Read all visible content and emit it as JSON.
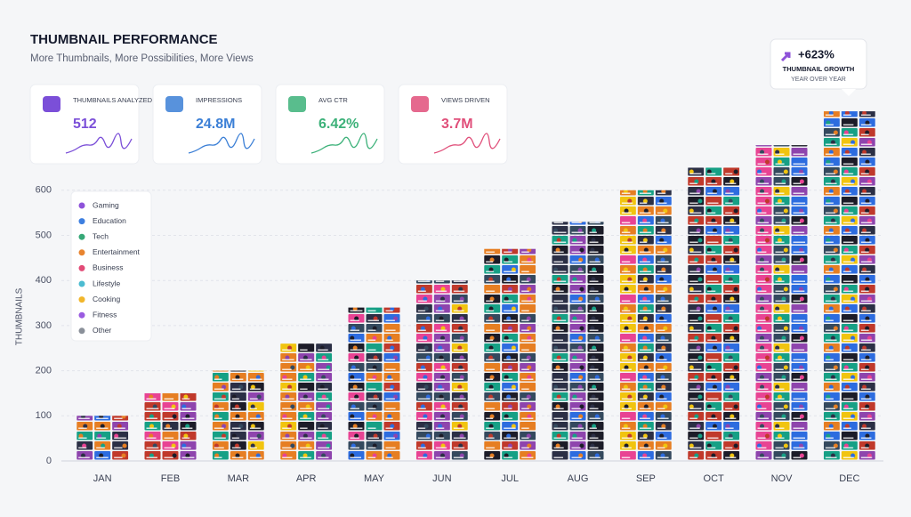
{
  "header": {
    "title": "THUMBNAIL PERFORMANCE",
    "subtitle": "More Thumbnails, More Possibilities, More Views"
  },
  "cards": [
    {
      "label": "THUMBNAILS ANALYZED",
      "value": "512",
      "color": "#7b4fd8"
    },
    {
      "label": "IMPRESSIONS",
      "value": "24.8M",
      "color": "#3b7fd6"
    },
    {
      "label": "AVG CTR",
      "value": "6.42%",
      "color": "#3cb179"
    },
    {
      "label": "VIEWS DRIVEN",
      "value": "3.7M",
      "color": "#e04f7a"
    }
  ],
  "callout": {
    "value": "+623%",
    "line1": "THUMBNAIL GROWTH",
    "line2": "YEAR OVER YEAR"
  },
  "chart_data": {
    "type": "bar",
    "y_label": "THUMBNAILS",
    "categories": [
      "JAN",
      "FEB",
      "MAR",
      "APR",
      "MAY",
      "JUN",
      "JUL",
      "AUG",
      "SEP",
      "OCT",
      "NOV",
      "DEC"
    ],
    "values": [
      100,
      150,
      200,
      260,
      340,
      400,
      470,
      530,
      600,
      650,
      700,
      775
    ],
    "ylim": [
      0,
      800
    ],
    "yticks": [
      0,
      100,
      200,
      300,
      400,
      500,
      600
    ],
    "grid": true,
    "legend": [
      {
        "name": "Gaming",
        "color": "#8e52d9"
      },
      {
        "name": "Education",
        "color": "#3d7fe0"
      },
      {
        "name": "Tech",
        "color": "#36a877"
      },
      {
        "name": "Entertainment",
        "color": "#e8842f"
      },
      {
        "name": "Business",
        "color": "#e24b77"
      },
      {
        "name": "Lifestyle",
        "color": "#4cbcd1"
      },
      {
        "name": "Cooking",
        "color": "#f1b62b"
      },
      {
        "name": "Fitness",
        "color": "#9a5be0"
      },
      {
        "name": "Other",
        "color": "#8a9099"
      }
    ]
  }
}
